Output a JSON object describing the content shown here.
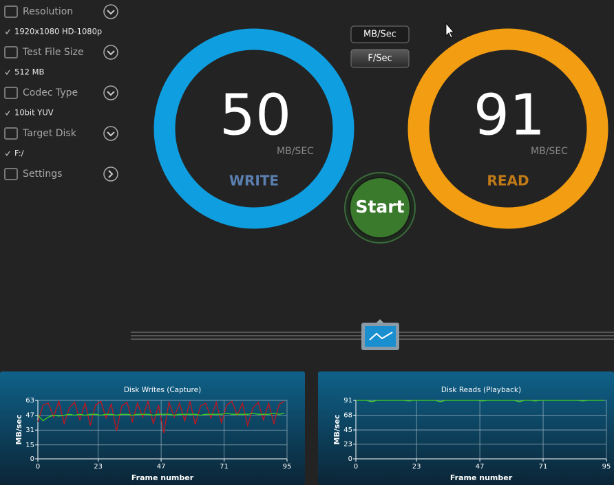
{
  "sidebar": {
    "items": [
      {
        "label": "Resolution",
        "value": "1920x1080 HD-1080p"
      },
      {
        "label": "Test File Size",
        "value": "512 MB"
      },
      {
        "label": "Codec Type",
        "value": "10bit YUV"
      },
      {
        "label": "Target Disk",
        "value": "F:/"
      },
      {
        "label": "Settings"
      }
    ]
  },
  "unit_buttons": [
    "MB/Sec",
    "F/Sec"
  ],
  "gauges": [
    {
      "value": 50,
      "unit": "MB/SEC",
      "label": "WRITE",
      "color": "#0f9ee0",
      "label_color": "#5a7fb0"
    },
    {
      "value": 91,
      "unit": "MB/SEC",
      "label": "READ",
      "color": "#f29d12",
      "label_color": "#c07a18"
    }
  ],
  "start_button": "Start",
  "chart_data": [
    {
      "type": "line",
      "title": "Disk Writes (Capture)",
      "x_label": "Frame number",
      "y_label": "MB/sec",
      "x": [
        0,
        2,
        4,
        6,
        8,
        10,
        12,
        14,
        16,
        18,
        20,
        22,
        24,
        26,
        28,
        30,
        32,
        34,
        36,
        38,
        40,
        42,
        44,
        46,
        48,
        50,
        52,
        54,
        56,
        58,
        60,
        62,
        64,
        66,
        68,
        70,
        72,
        74,
        76,
        78,
        80,
        82,
        84,
        86,
        88,
        90,
        92,
        94
      ],
      "xlim": [
        0,
        95
      ],
      "xticks": [
        0,
        23,
        47,
        71,
        95
      ],
      "ylim": [
        0,
        63
      ],
      "yticks": [
        0,
        15,
        31,
        47,
        63
      ],
      "grid": true,
      "series": [
        {
          "color": "#c8141e",
          "values": [
            40,
            58,
            60,
            45,
            62,
            38,
            55,
            61,
            42,
            60,
            36,
            58,
            62,
            44,
            59,
            30,
            57,
            61,
            40,
            60,
            45,
            62,
            38,
            58,
            28,
            61,
            45,
            60,
            41,
            62,
            37,
            57,
            60,
            44,
            61,
            39,
            58,
            62,
            47,
            60,
            36,
            55,
            61,
            42,
            60,
            38,
            59,
            62
          ]
        },
        {
          "color": "#3fd21e",
          "values": [
            47,
            41,
            45,
            47,
            46,
            47,
            48,
            47,
            48,
            47,
            48,
            48,
            47,
            48,
            48,
            47,
            48,
            48,
            47,
            48,
            48,
            48,
            47,
            48,
            48,
            48,
            47,
            48,
            48,
            48,
            48,
            47,
            48,
            48,
            48,
            48,
            49,
            48,
            48,
            48,
            48,
            49,
            48,
            48,
            48,
            49,
            48,
            49
          ]
        }
      ]
    },
    {
      "type": "line",
      "title": "Disk Reads (Playback)",
      "x_label": "Frame number",
      "y_label": "MB/sec",
      "x": [
        0,
        2,
        4,
        6,
        8,
        10,
        12,
        14,
        16,
        18,
        20,
        22,
        24,
        26,
        28,
        30,
        32,
        34,
        36,
        38,
        40,
        42,
        44,
        46,
        48,
        50,
        52,
        54,
        56,
        58,
        60,
        62,
        64,
        66,
        68,
        70,
        72,
        74,
        76,
        78,
        80,
        82,
        84,
        86,
        88,
        90,
        92,
        94
      ],
      "xlim": [
        0,
        95
      ],
      "xticks": [
        0,
        23,
        47,
        71,
        95
      ],
      "ylim": [
        0,
        91
      ],
      "yticks": [
        0,
        23,
        45,
        68,
        91
      ],
      "grid": true,
      "series": [
        {
          "color": "#3fd21e",
          "values": [
            91,
            91,
            91,
            89,
            91,
            91,
            91,
            91,
            91,
            91,
            90,
            91,
            91,
            91,
            91,
            91,
            89,
            91,
            91,
            91,
            91,
            91,
            91,
            91,
            90,
            91,
            91,
            91,
            91,
            91,
            91,
            89,
            91,
            91,
            90,
            91,
            91,
            91,
            91,
            91,
            91,
            91,
            91,
            90,
            91,
            91,
            91,
            91
          ]
        }
      ]
    }
  ]
}
